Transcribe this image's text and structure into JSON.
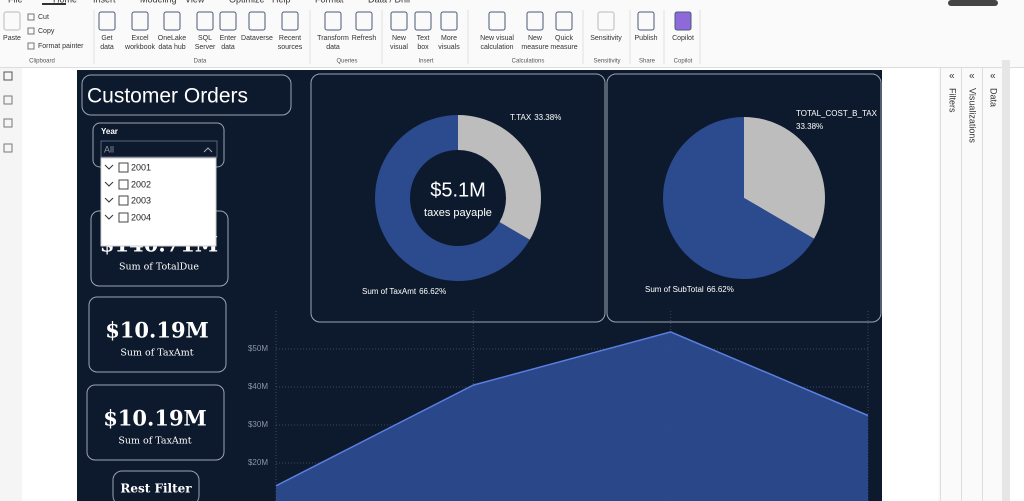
{
  "ribbon": {
    "tabs": [
      "File",
      "Home",
      "Insert",
      "Modeling",
      "View",
      "Optimize",
      "Help",
      "Format",
      "Data / Drill"
    ],
    "groups": [
      {
        "label": "Clipboard",
        "buttons": [
          [
            "Paste"
          ],
          [
            "Cut"
          ],
          [
            "Copy"
          ],
          [
            "Format painter"
          ]
        ]
      },
      {
        "label": "Data",
        "buttons": [
          [
            "Get",
            "data"
          ],
          [
            "Excel",
            "workbook"
          ],
          [
            "OneLake",
            "data hub"
          ],
          [
            "SQL",
            "Server"
          ],
          [
            "Enter",
            "data"
          ],
          [
            "Dataverse"
          ],
          [
            "Recent",
            "sources"
          ]
        ]
      },
      {
        "label": "Queries",
        "buttons": [
          [
            "Transform",
            "data"
          ],
          [
            "Refresh"
          ]
        ]
      },
      {
        "label": "Insert",
        "buttons": [
          [
            "New",
            "visual"
          ],
          [
            "Text",
            "box"
          ],
          [
            "More",
            "visuals"
          ]
        ]
      },
      {
        "label": "Calculations",
        "buttons": [
          [
            "New visual",
            "calculation"
          ],
          [
            "New",
            "measure"
          ],
          [
            "Quick",
            "measure"
          ]
        ]
      },
      {
        "label": "Sensitivity",
        "buttons": [
          [
            "Sensitivity"
          ]
        ]
      },
      {
        "label": "Share",
        "buttons": [
          [
            "Publish"
          ]
        ]
      },
      {
        "label": "Copilot",
        "buttons": [
          [
            "Copilot"
          ]
        ]
      }
    ]
  },
  "panes": [
    "Filters",
    "Visualizations",
    "Data"
  ],
  "report": {
    "title": "Customer Orders",
    "slicer": {
      "label": "Year",
      "value": "All",
      "options": [
        "2001",
        "2002",
        "2003",
        "2004"
      ]
    },
    "cards": [
      {
        "value": "$140.71M",
        "label": "Sum of TotalDue"
      },
      {
        "value": "$10.19M",
        "label": "Sum of TaxAmt"
      },
      {
        "value": "$10.19M",
        "label": "Sum of TaxAmt"
      }
    ],
    "button": "Rest Filter",
    "donut": {
      "center_value": "$5.1M",
      "center_label": "taxes payaple",
      "slices": [
        {
          "name": "T.TAX",
          "value": 33.38,
          "value_label": "33.38%",
          "color": "#bdbdbd"
        },
        {
          "name": "Sum of TaxAmt",
          "value": 66.62,
          "value_label": "66.62%",
          "color": "#2c4a8e"
        }
      ]
    },
    "pie": {
      "slices": [
        {
          "name": "TOTAL_COST_B_TAX",
          "value": 33.38,
          "value_label": "33.38%",
          "color": "#bdbdbd"
        },
        {
          "name": "Sum of SubTotal",
          "value": 66.62,
          "value_label": "66.62%",
          "color": "#2c4a8e"
        }
      ]
    },
    "area": {
      "ylim": [
        10,
        60
      ],
      "yticks": [
        {
          "value": 20,
          "label": "$20M"
        },
        {
          "value": 30,
          "label": "$30M"
        },
        {
          "value": 40,
          "label": "$40M"
        },
        {
          "value": 50,
          "label": "$50M"
        }
      ],
      "values": [
        14,
        40.5,
        54.5,
        32.5
      ],
      "color": "#2c4a8e",
      "line_color": "#5b7fe0"
    }
  }
}
